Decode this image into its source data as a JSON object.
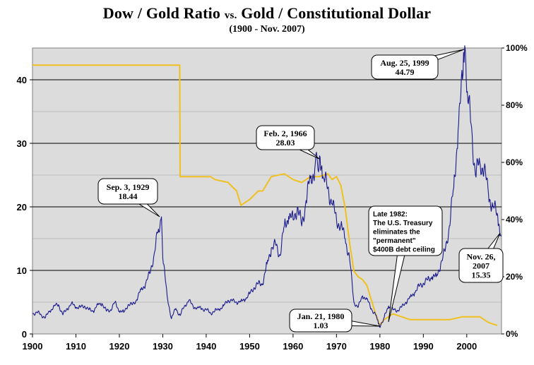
{
  "title": {
    "main_left": "Dow / Gold Ratio ",
    "main_vs": "vs.",
    "main_right": " Gold / Constitutional Dollar",
    "subtitle": "(1900 - Nov. 2007)"
  },
  "chart_data": {
    "type": "line",
    "title": "Dow / Gold Ratio vs. Gold / Constitutional Dollar",
    "subtitle": "(1900 - Nov. 2007)",
    "x_ticks": [
      "1900",
      "1910",
      "1920",
      "1930",
      "1940",
      "1950",
      "1960",
      "1970",
      "1980",
      "1990",
      "2000"
    ],
    "xlim": [
      1900,
      2008
    ],
    "y_left": {
      "ticks": [
        "0",
        "10",
        "20",
        "30",
        "40"
      ],
      "ylim": [
        0,
        45
      ]
    },
    "y_right": {
      "ticks": [
        "0%",
        "20%",
        "40%",
        "60%",
        "80%",
        "100%"
      ],
      "ylim": [
        0,
        100
      ]
    },
    "grid": true,
    "colors": {
      "dow_gold": "#1a1a8c",
      "gold_dollar": "#f0c020",
      "plot_bg": "#dcdcdc"
    },
    "series": [
      {
        "axis": "left",
        "color": "#1a1a8c",
        "x": [
          1900,
          1901,
          1902,
          1903,
          1904,
          1905,
          1906,
          1907,
          1908,
          1909,
          1910,
          1911,
          1912,
          1913,
          1914,
          1915,
          1916,
          1917,
          1918,
          1919,
          1920,
          1921,
          1922,
          1923,
          1924,
          1925,
          1926,
          1927,
          1928,
          1929,
          1929.7,
          1930,
          1931,
          1932,
          1933,
          1934,
          1935,
          1936,
          1937,
          1938,
          1939,
          1940,
          1941,
          1942,
          1943,
          1944,
          1945,
          1946,
          1947,
          1948,
          1949,
          1950,
          1951,
          1952,
          1953,
          1954,
          1955,
          1956,
          1957,
          1958,
          1959,
          1960,
          1961,
          1962,
          1963,
          1964,
          1965,
          1966.1,
          1967,
          1968,
          1969,
          1970,
          1971,
          1972,
          1973,
          1974,
          1975,
          1976,
          1977,
          1978,
          1979,
          1980.05,
          1981,
          1982,
          1983,
          1984,
          1985,
          1986,
          1987,
          1988,
          1989,
          1990,
          1991,
          1992,
          1993,
          1994,
          1995,
          1996,
          1997,
          1998,
          1999,
          1999.65,
          2000,
          2001,
          2002,
          2003,
          2004,
          2005,
          2006,
          2007,
          2007.9
        ],
        "values": [
          3.2,
          3.4,
          3.0,
          2.6,
          3.6,
          4.4,
          4.6,
          3.0,
          4.0,
          4.8,
          4.2,
          4.2,
          4.4,
          3.8,
          3.6,
          4.6,
          4.8,
          3.6,
          3.8,
          5.0,
          3.6,
          3.4,
          4.6,
          4.6,
          5.4,
          7.0,
          7.8,
          9.5,
          12.5,
          16.5,
          18.44,
          12.0,
          6.0,
          2.4,
          4.0,
          2.9,
          4.4,
          5.3,
          4.3,
          4.1,
          4.0,
          3.8,
          3.3,
          3.6,
          3.9,
          4.4,
          5.3,
          5.2,
          5.0,
          5.1,
          5.5,
          6.3,
          7.3,
          7.9,
          7.9,
          11.0,
          13.5,
          14.0,
          12.4,
          17.0,
          18.5,
          18.0,
          20.0,
          17.0,
          21.0,
          24.5,
          25.9,
          28.03,
          24.5,
          23.0,
          20.5,
          18.0,
          17.0,
          15.0,
          12.0,
          5.0,
          4.2,
          6.0,
          5.5,
          4.0,
          3.0,
          1.03,
          2.6,
          4.4,
          3.8,
          3.7,
          4.2,
          5.0,
          5.8,
          6.5,
          7.5,
          8.0,
          8.5,
          9.0,
          9.0,
          11.0,
          13.0,
          17.0,
          23.0,
          32.0,
          40.0,
          44.79,
          38.0,
          33.0,
          25.0,
          27.0,
          26.0,
          22.0,
          20.0,
          19.0,
          15.35
        ]
      },
      {
        "axis": "right",
        "color": "#f0c020",
        "x": [
          1900,
          1933.9,
          1934,
          1941,
          1942,
          1945,
          1947,
          1948,
          1950,
          1952,
          1953,
          1955,
          1958,
          1960,
          1962,
          1964,
          1966,
          1968,
          1969,
          1970,
          1971,
          1972,
          1973,
          1974,
          1975,
          1976,
          1977,
          1978,
          1979,
          1980,
          1981,
          1982,
          1983,
          1985,
          1987,
          1990,
          1993,
          1996,
          1999,
          2001,
          2003,
          2005,
          2007
        ],
        "values": [
          94,
          94,
          55,
          55,
          54,
          53,
          50,
          45,
          47,
          50,
          50,
          55,
          56,
          54,
          53,
          55,
          55,
          56,
          54,
          55,
          52,
          44,
          32,
          22,
          20,
          19,
          17,
          12,
          7,
          3,
          5,
          6,
          7,
          6,
          5,
          5,
          5,
          5,
          6,
          6,
          6,
          4,
          3
        ]
      }
    ],
    "annotations": [
      {
        "lines": [
          "Sep. 3, 1929",
          "18.44"
        ]
      },
      {
        "lines": [
          "Feb. 2, 1966",
          "28.03"
        ]
      },
      {
        "lines": [
          "Aug. 25, 1999",
          "44.79"
        ]
      },
      {
        "lines": [
          "Late 1982:",
          "The U.S. Treasury",
          "eliminates the",
          "\"permanent\"",
          "$400B debt ceiling"
        ]
      },
      {
        "lines": [
          "Jan. 21, 1980",
          "1.03"
        ]
      },
      {
        "lines": [
          "Nov. 26,",
          "2007",
          "15.35"
        ]
      }
    ]
  }
}
